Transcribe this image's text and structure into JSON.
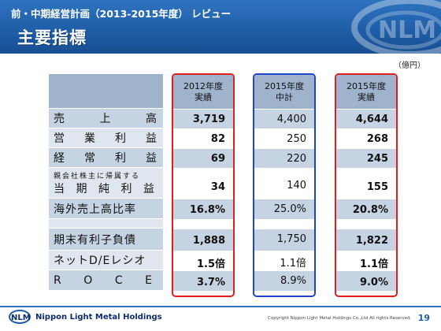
{
  "header": {
    "title": "前・中期経営計画（2013-2015年度） レビュー",
    "heading": "主要指標"
  },
  "unit": "（億円）",
  "columns": [
    {
      "line1": "2012年度",
      "line2": "実績"
    },
    {
      "line1": "2015年度",
      "line2": "中計"
    },
    {
      "line1": "2015年度",
      "line2": "実績"
    }
  ],
  "rows": [
    {
      "label_chars": [
        "売",
        "上",
        "高"
      ],
      "values": [
        "3,719",
        "4,400",
        "4,644"
      ]
    },
    {
      "label_chars": [
        "営",
        "業",
        "利",
        "益"
      ],
      "values": [
        "82",
        "250",
        "268"
      ]
    },
    {
      "label_chars": [
        "経",
        "常",
        "利",
        "益"
      ],
      "values": [
        "69",
        "220",
        "245"
      ]
    },
    {
      "label_small": "親会社株主に帰属する",
      "label_chars": [
        "当",
        "期",
        "純",
        "利",
        "益"
      ],
      "values": [
        "34",
        "140",
        "155"
      ]
    },
    {
      "label": "海外売上高比率",
      "values": [
        "16.8%",
        "25.0%",
        "20.8%"
      ]
    },
    {
      "label": "期末有利子負債",
      "values": [
        "1,888",
        "1,750",
        "1,822"
      ]
    },
    {
      "label": "ネットD/Eレシオ",
      "values": [
        "1.5倍",
        "1.1倍",
        "1.1倍"
      ]
    },
    {
      "label_chars": [
        "R",
        "O",
        "C",
        "E"
      ],
      "values": [
        "3.7%",
        "8.9%",
        "9.0%"
      ]
    }
  ],
  "footer": {
    "company": "Nippon Light Metal Holdings",
    "copyright": "Copyright Nippon Light Metal Holdings Co.,Ltd All rights Reserved.",
    "page": "19"
  },
  "colors": {
    "header_blue": "#1f5ea8",
    "actual_border": "#e01e1e",
    "plan_border": "#2244cc",
    "band_blue": "#c6d3e3",
    "band_dark": "#9fb3cc"
  }
}
